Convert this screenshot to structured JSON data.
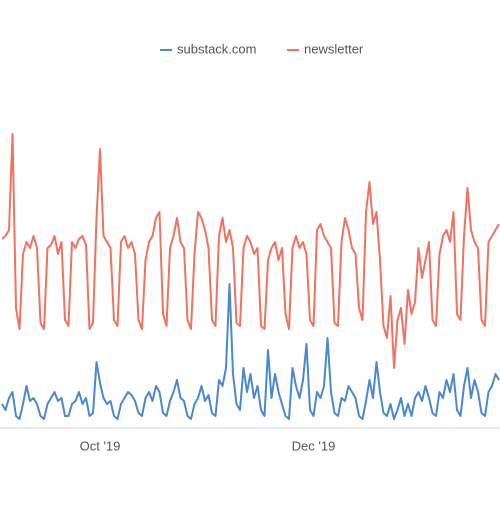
{
  "chart_data": {
    "type": "line",
    "categories": [
      null,
      null,
      null,
      null,
      null,
      null,
      null,
      null,
      null,
      null,
      null,
      null,
      null,
      null,
      null,
      null,
      null,
      null,
      null,
      null,
      null,
      null,
      null,
      null,
      null,
      null,
      null,
      null,
      "Oct '19",
      null,
      null,
      null,
      null,
      null,
      null,
      null,
      null,
      null,
      null,
      null,
      null,
      null,
      null,
      null,
      null,
      null,
      null,
      null,
      null,
      null,
      null,
      null,
      null,
      null,
      null,
      null,
      null,
      null,
      null,
      null,
      null,
      null,
      null,
      null,
      null,
      null,
      null,
      null,
      null,
      null,
      null,
      null,
      null,
      null,
      null,
      null,
      null,
      null,
      null,
      null,
      null,
      null,
      null,
      null,
      null,
      null,
      null,
      null,
      null,
      "Dec '19",
      null,
      null,
      null,
      null,
      null,
      null,
      null,
      null,
      null,
      null,
      null,
      null,
      null,
      null,
      null,
      null,
      null,
      null,
      null,
      null,
      null,
      null,
      null,
      null,
      null,
      null,
      null,
      null,
      null,
      null,
      null,
      null,
      null,
      null,
      null,
      null,
      null,
      null,
      null,
      null,
      null,
      null,
      null,
      null,
      null,
      null,
      null,
      null,
      null,
      null,
      null,
      null,
      null
    ],
    "series": [
      {
        "name": "substack.com",
        "color": "#4a88d0",
        "values": [
          8,
          6,
          10,
          12,
          4,
          3,
          8,
          14,
          9,
          10,
          8,
          4,
          3,
          8,
          10,
          12,
          9,
          10,
          4,
          4,
          8,
          9,
          12,
          8,
          10,
          4,
          5,
          22,
          15,
          10,
          8,
          9,
          4,
          3,
          8,
          10,
          12,
          11,
          9,
          5,
          4,
          10,
          12,
          9,
          14,
          12,
          5,
          4,
          9,
          12,
          16,
          10,
          9,
          4,
          3,
          8,
          10,
          14,
          9,
          11,
          5,
          4,
          16,
          14,
          20,
          48,
          18,
          8,
          6,
          20,
          12,
          18,
          10,
          14,
          6,
          4,
          26,
          10,
          18,
          12,
          8,
          4,
          3,
          20,
          14,
          10,
          16,
          28,
          6,
          4,
          12,
          10,
          14,
          30,
          12,
          5,
          4,
          10,
          9,
          14,
          12,
          10,
          4,
          3,
          9,
          16,
          10,
          22,
          12,
          5,
          4,
          8,
          3,
          6,
          10,
          4,
          8,
          4,
          10,
          12,
          9,
          14,
          10,
          5,
          4,
          12,
          10,
          16,
          12,
          18,
          6,
          4,
          14,
          20,
          10,
          16,
          12,
          5,
          4,
          12,
          14,
          18,
          16
        ]
      },
      {
        "name": "newsletter",
        "color": "#f07260",
        "values": [
          63,
          64,
          66,
          98,
          40,
          33,
          58,
          62,
          60,
          64,
          60,
          35,
          33,
          60,
          61,
          64,
          58,
          62,
          36,
          34,
          62,
          60,
          63,
          64,
          61,
          33,
          35,
          70,
          93,
          64,
          62,
          60,
          36,
          34,
          62,
          64,
          60,
          62,
          58,
          36,
          33,
          56,
          62,
          64,
          70,
          72,
          38,
          34,
          60,
          64,
          70,
          62,
          60,
          36,
          33,
          58,
          72,
          70,
          66,
          60,
          36,
          34,
          64,
          70,
          62,
          66,
          60,
          35,
          34,
          60,
          64,
          62,
          58,
          60,
          34,
          33,
          56,
          60,
          62,
          56,
          60,
          38,
          33,
          60,
          64,
          60,
          62,
          58,
          36,
          34,
          66,
          68,
          64,
          62,
          60,
          35,
          34,
          62,
          70,
          66,
          60,
          58,
          40,
          36,
          72,
          82,
          68,
          72,
          56,
          34,
          30,
          44,
          20,
          36,
          40,
          28,
          46,
          38,
          42,
          60,
          50,
          56,
          62,
          36,
          34,
          58,
          64,
          66,
          62,
          72,
          38,
          36,
          64,
          80,
          66,
          62,
          60,
          36,
          34,
          62,
          64,
          66,
          68
        ]
      }
    ],
    "ylim": [
      0,
      100
    ],
    "legend": "top"
  }
}
